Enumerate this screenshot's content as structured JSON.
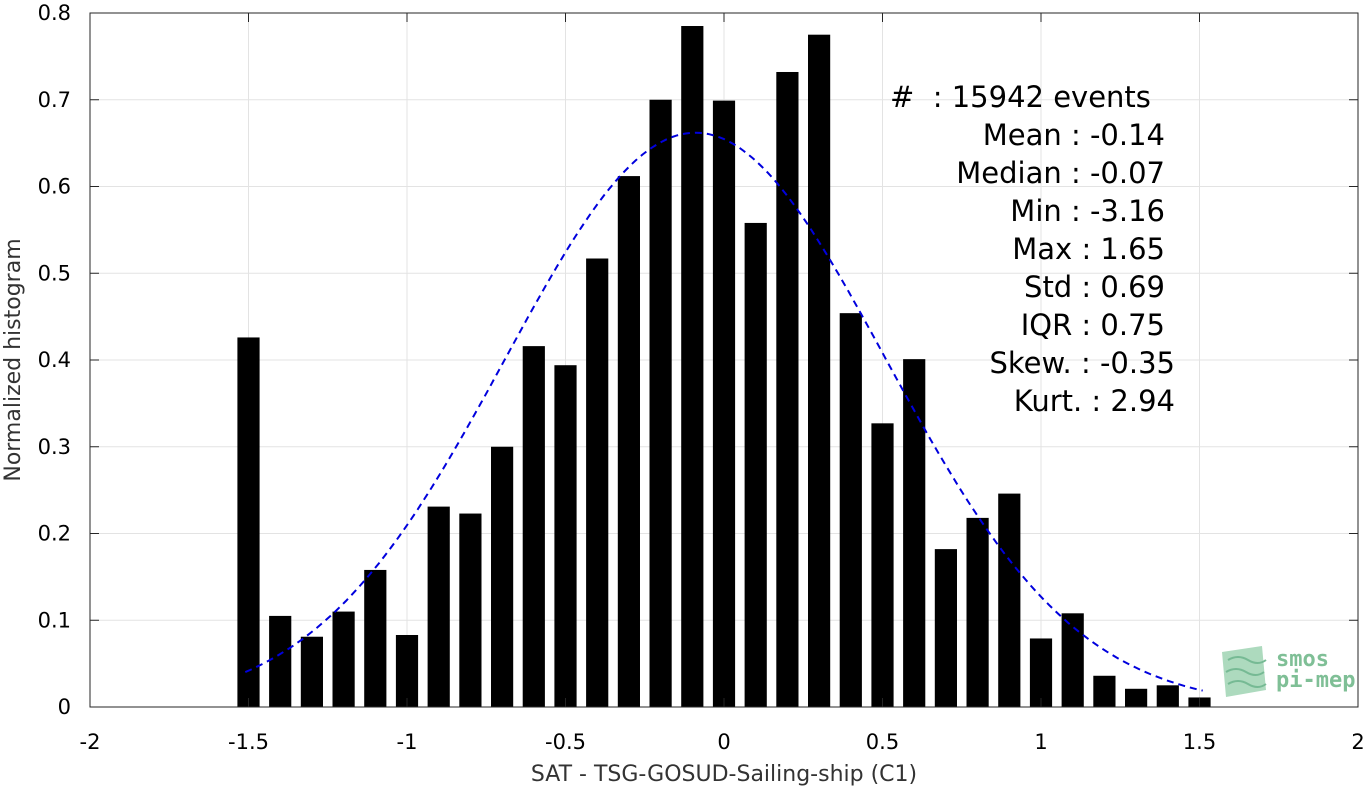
{
  "chart_data": {
    "type": "bar",
    "xlabel": "SAT - TSG-GOSUD-Sailing-ship (C1)",
    "ylabel": "Normalized histogram",
    "xlim": [
      -2,
      2
    ],
    "ylim": [
      0,
      0.8
    ],
    "xticks": [
      -2,
      -1.5,
      -1,
      -0.5,
      0,
      0.5,
      1,
      1.5,
      2
    ],
    "xtick_labels": [
      "-2",
      "-1.5",
      "-1",
      "-0.5",
      "0",
      "0.5",
      "1",
      "1.5",
      "2"
    ],
    "yticks": [
      0,
      0.1,
      0.2,
      0.3,
      0.4,
      0.5,
      0.6,
      0.7,
      0.8
    ],
    "ytick_labels": [
      "0",
      "0.1",
      "0.2",
      "0.3",
      "0.4",
      "0.5",
      "0.6",
      "0.7",
      "0.8"
    ],
    "grid": true,
    "bar_width": 0.07,
    "bar_color": "#000000",
    "bins": [
      -1.5,
      -1.4,
      -1.3,
      -1.2,
      -1.1,
      -1.0,
      -0.9,
      -0.8,
      -0.7,
      -0.6,
      -0.5,
      -0.4,
      -0.3,
      -0.2,
      -0.1,
      0.0,
      0.1,
      0.2,
      0.3,
      0.4,
      0.5,
      0.6,
      0.7,
      0.8,
      0.9,
      1.0,
      1.1,
      1.2,
      1.3,
      1.4,
      1.5
    ],
    "values": [
      0.426,
      0.105,
      0.081,
      0.11,
      0.158,
      0.083,
      0.231,
      0.223,
      0.3,
      0.416,
      0.394,
      0.517,
      0.612,
      0.7,
      0.785,
      0.699,
      0.558,
      0.732,
      0.775,
      0.454,
      0.327,
      0.401,
      0.182,
      0.218,
      0.246,
      0.079,
      0.108,
      0.036,
      0.021,
      0.025,
      0.011
    ],
    "fit_curve": {
      "style": "dashed",
      "color": "#0000dd",
      "mean": -0.09,
      "sigma": 0.6,
      "peak": 0.662,
      "x_range": [
        -1.51,
        1.51
      ]
    },
    "stats": [
      {
        "label": "#  : 15942 events"
      },
      {
        "label": "Mean : -0.14"
      },
      {
        "label": "Median : -0.07"
      },
      {
        "label": "Min : -3.16"
      },
      {
        "label": "Max : 1.65"
      },
      {
        "label": "Std : 0.69"
      },
      {
        "label": "IQR : 0.75"
      },
      {
        "label": "Skew. : -0.35"
      },
      {
        "label": "Kurt. : 2.94"
      }
    ],
    "logo": {
      "line1": "smos",
      "line2": "pi-mep",
      "color": "#7fbf96"
    }
  }
}
